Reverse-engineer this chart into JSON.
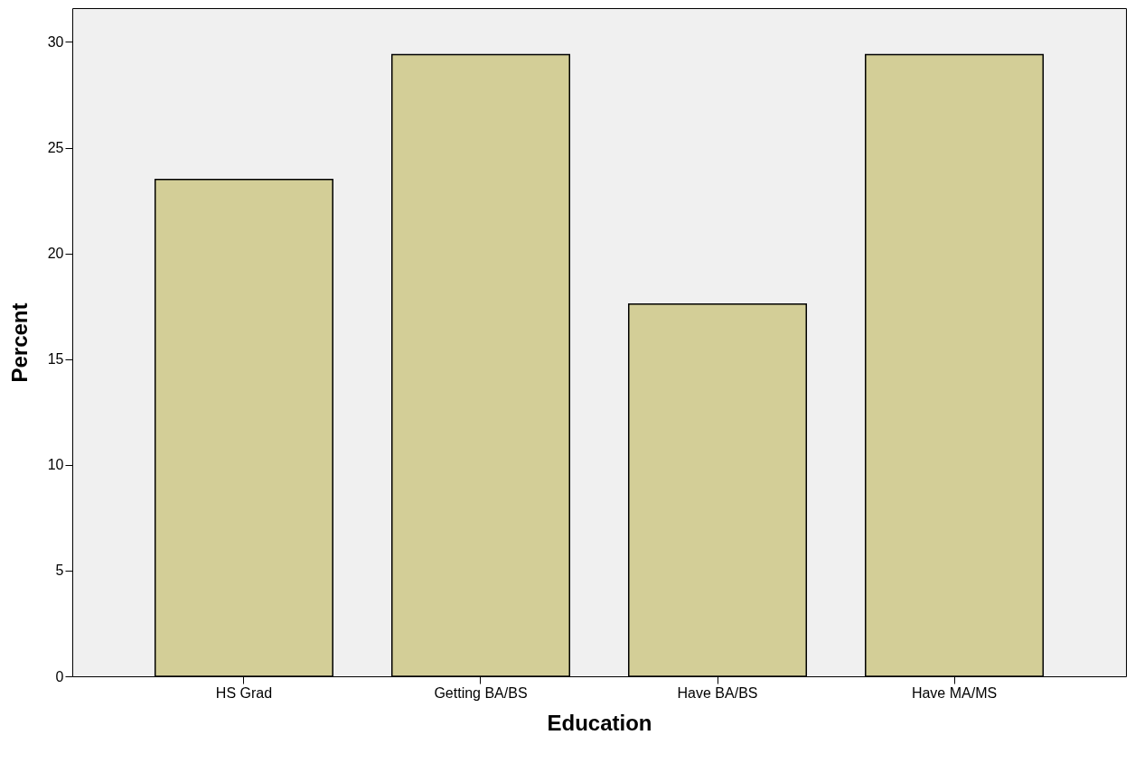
{
  "chart_data": {
    "type": "bar",
    "xlabel": "Education",
    "ylabel": "Percent",
    "categories": [
      "HS Grad",
      "Getting BA/BS",
      "Have BA/BS",
      "Have MA/MS"
    ],
    "values": [
      23.5,
      29.4,
      17.6,
      29.4
    ],
    "color": "#d3ce97",
    "ylim": [
      0,
      31.6
    ],
    "yticks": [
      0,
      5,
      10,
      15,
      20,
      25,
      30
    ],
    "grid": false
  }
}
